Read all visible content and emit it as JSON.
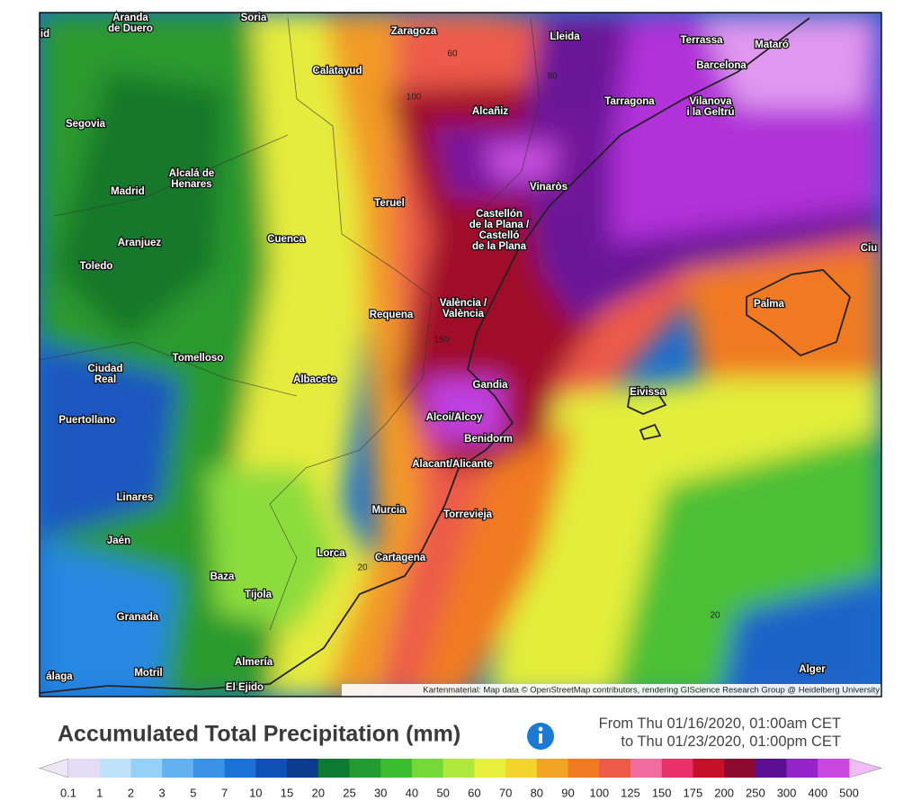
{
  "map": {
    "labels": [
      [
        "Aranda",
        "de Duero"
      ],
      [
        "Soria"
      ],
      [
        "Zaragoza"
      ],
      [
        "Lleida"
      ],
      [
        "Terrassa"
      ],
      [
        "Mataró"
      ],
      [
        "Barcelona"
      ],
      [
        "Calatayud"
      ],
      [
        "Segovia"
      ],
      [
        "Alcañiz"
      ],
      [
        "Tarragona"
      ],
      [
        "Vilanova",
        "i la Geltrú"
      ],
      [
        "Alcalá de",
        "Henares"
      ],
      [
        "Madrid"
      ],
      [
        "Vinaròs"
      ],
      [
        "Teruel"
      ],
      [
        "Castellón",
        "de la Plana /",
        "Castelló",
        "de la Plana"
      ],
      [
        "Aranjuez"
      ],
      [
        "Cuenca"
      ],
      [
        "Toledo"
      ],
      [
        "Palma"
      ],
      [
        "Requena"
      ],
      [
        "València /",
        "València"
      ],
      [
        "Tomelloso"
      ],
      [
        "Ciudad",
        "Real"
      ],
      [
        "Albacete"
      ],
      [
        "Gandia"
      ],
      [
        "Eivissa"
      ],
      [
        "Alcoi/Alcoy"
      ],
      [
        "Puertollano"
      ],
      [
        "Benidorm"
      ],
      [
        "Alacant/Alicante"
      ],
      [
        "Linares"
      ],
      [
        "Murcia"
      ],
      [
        "Torrevieja"
      ],
      [
        "Jaén"
      ],
      [
        "Lorca"
      ],
      [
        "Cartagena"
      ],
      [
        "Baza"
      ],
      [
        "Tíjola"
      ],
      [
        "Granada"
      ],
      [
        "Almería"
      ],
      [
        "Motril"
      ],
      [
        "El Ejido"
      ],
      [
        "Alger"
      ],
      [
        "álaga"
      ],
      [
        "Ciu"
      ],
      [
        "id"
      ]
    ],
    "contour_labels": [
      "60",
      "80",
      "100",
      "150",
      "20",
      "20"
    ],
    "attribution": "Kartenmaterial: Map data © OpenStreetMap contributors, rendering GIScience Research Group @ Heidelberg University"
  },
  "legend": {
    "title": "Accumulated Total Precipitation (mm)",
    "period": [
      "From Thu 01/16/2020, 01:00am CET",
      "to Thu 01/23/2020, 01:00pm CET"
    ],
    "ticks": [
      "0.1",
      "1",
      "2",
      "3",
      "5",
      "7",
      "10",
      "15",
      "20",
      "25",
      "30",
      "40",
      "50",
      "60",
      "70",
      "80",
      "90",
      "100",
      "125",
      "150",
      "175",
      "200",
      "250",
      "300",
      "400",
      "500"
    ],
    "colors": [
      "#e4dcf4",
      "#bfe2fb",
      "#94d0f8",
      "#62b2f0",
      "#3a92e6",
      "#1a72d6",
      "#1050b4",
      "#0c3a8c",
      "#0c7a30",
      "#229c30",
      "#3cbc30",
      "#74d838",
      "#b0e840",
      "#e6f03c",
      "#f2d42a",
      "#f2a424",
      "#f07a22",
      "#ec5a48",
      "#f26ca0",
      "#e8306a",
      "#c41028",
      "#8c0a30",
      "#5a1090",
      "#9424c8",
      "#c848e0"
    ],
    "under_color": "#ece6f6",
    "over_color": "#f0bcf6"
  }
}
